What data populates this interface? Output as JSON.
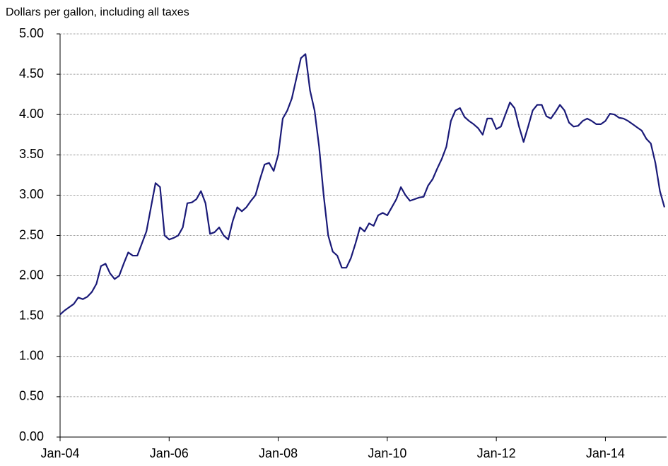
{
  "chart_data": {
    "type": "line",
    "title": "Dollars per gallon, including all taxes",
    "x": [
      "2004-01",
      "2004-02",
      "2004-03",
      "2004-04",
      "2004-05",
      "2004-06",
      "2004-07",
      "2004-08",
      "2004-09",
      "2004-10",
      "2004-11",
      "2004-12",
      "2005-01",
      "2005-02",
      "2005-03",
      "2005-04",
      "2005-05",
      "2005-06",
      "2005-07",
      "2005-08",
      "2005-09",
      "2005-10",
      "2005-11",
      "2005-12",
      "2006-01",
      "2006-02",
      "2006-03",
      "2006-04",
      "2006-05",
      "2006-06",
      "2006-07",
      "2006-08",
      "2006-09",
      "2006-10",
      "2006-11",
      "2006-12",
      "2007-01",
      "2007-02",
      "2007-03",
      "2007-04",
      "2007-05",
      "2007-06",
      "2007-07",
      "2007-08",
      "2007-09",
      "2007-10",
      "2007-11",
      "2007-12",
      "2008-01",
      "2008-02",
      "2008-03",
      "2008-04",
      "2008-05",
      "2008-06",
      "2008-07",
      "2008-08",
      "2008-09",
      "2008-10",
      "2008-11",
      "2008-12",
      "2009-01",
      "2009-02",
      "2009-03",
      "2009-04",
      "2009-05",
      "2009-06",
      "2009-07",
      "2009-08",
      "2009-09",
      "2009-10",
      "2009-11",
      "2009-12",
      "2010-01",
      "2010-02",
      "2010-03",
      "2010-04",
      "2010-05",
      "2010-06",
      "2010-07",
      "2010-08",
      "2010-09",
      "2010-10",
      "2010-11",
      "2010-12",
      "2011-01",
      "2011-02",
      "2011-03",
      "2011-04",
      "2011-05",
      "2011-06",
      "2011-07",
      "2011-08",
      "2011-09",
      "2011-10",
      "2011-11",
      "2011-12",
      "2012-01",
      "2012-02",
      "2012-03",
      "2012-04",
      "2012-05",
      "2012-06",
      "2012-07",
      "2012-08",
      "2012-09",
      "2012-10",
      "2012-11",
      "2012-12",
      "2013-01",
      "2013-02",
      "2013-03",
      "2013-04",
      "2013-05",
      "2013-06",
      "2013-07",
      "2013-08",
      "2013-09",
      "2013-10",
      "2013-11",
      "2013-12",
      "2014-01",
      "2014-02",
      "2014-03",
      "2014-04",
      "2014-05",
      "2014-06",
      "2014-07",
      "2014-08",
      "2014-09",
      "2014-10",
      "2014-11",
      "2014-12",
      "2015-01",
      "2015-02"
    ],
    "series": [
      {
        "color": "#1a1a78",
        "values": [
          1.52,
          1.57,
          1.61,
          1.65,
          1.73,
          1.71,
          1.74,
          1.8,
          1.9,
          2.12,
          2.15,
          2.03,
          1.96,
          2.0,
          2.15,
          2.29,
          2.25,
          2.25,
          2.4,
          2.55,
          2.85,
          3.15,
          3.1,
          2.5,
          2.45,
          2.47,
          2.5,
          2.6,
          2.9,
          2.91,
          2.95,
          3.05,
          2.9,
          2.52,
          2.54,
          2.6,
          2.5,
          2.45,
          2.68,
          2.85,
          2.8,
          2.85,
          2.93,
          3.0,
          3.2,
          3.38,
          3.4,
          3.3,
          3.5,
          3.95,
          4.05,
          4.2,
          4.45,
          4.7,
          4.75,
          4.3,
          4.05,
          3.6,
          3.0,
          2.5,
          2.3,
          2.25,
          2.1,
          2.1,
          2.22,
          2.4,
          2.6,
          2.55,
          2.65,
          2.62,
          2.75,
          2.78,
          2.75,
          2.85,
          2.95,
          3.1,
          3.0,
          2.93,
          2.95,
          2.97,
          2.98,
          3.12,
          3.2,
          3.33,
          3.45,
          3.6,
          3.92,
          4.05,
          4.08,
          3.97,
          3.92,
          3.88,
          3.83,
          3.75,
          3.95,
          3.95,
          3.82,
          3.85,
          4.0,
          4.15,
          4.08,
          3.85,
          3.66,
          3.85,
          4.05,
          4.12,
          4.12,
          3.98,
          3.95,
          4.03,
          4.12,
          4.05,
          3.9,
          3.85,
          3.86,
          3.92,
          3.95,
          3.92,
          3.88,
          3.88,
          3.92,
          4.01,
          4.0,
          3.96,
          3.95,
          3.92,
          3.88,
          3.84,
          3.8,
          3.7,
          3.64,
          3.4,
          3.05,
          2.85
        ]
      }
    ],
    "xlim": [
      "2004-01",
      "2015-02"
    ],
    "xticks": [
      {
        "value": "2004-01",
        "label": "Jan-04"
      },
      {
        "value": "2006-01",
        "label": "Jan-06"
      },
      {
        "value": "2008-01",
        "label": "Jan-08"
      },
      {
        "value": "2010-01",
        "label": "Jan-10"
      },
      {
        "value": "2012-01",
        "label": "Jan-12"
      },
      {
        "value": "2014-01",
        "label": "Jan-14"
      }
    ],
    "ylim": [
      0,
      5
    ],
    "yticks": [
      {
        "value": 0,
        "label": "0.00"
      },
      {
        "value": 0.5,
        "label": "0.50"
      },
      {
        "value": 1,
        "label": "1.00"
      },
      {
        "value": 1.5,
        "label": "1.50"
      },
      {
        "value": 2,
        "label": "2.00"
      },
      {
        "value": 2.5,
        "label": "2.50"
      },
      {
        "value": 3,
        "label": "3.00"
      },
      {
        "value": 3.5,
        "label": "3.50"
      },
      {
        "value": 4,
        "label": "4.00"
      },
      {
        "value": 4.5,
        "label": "4.50"
      },
      {
        "value": 5,
        "label": "5.00"
      }
    ],
    "grid": true
  }
}
